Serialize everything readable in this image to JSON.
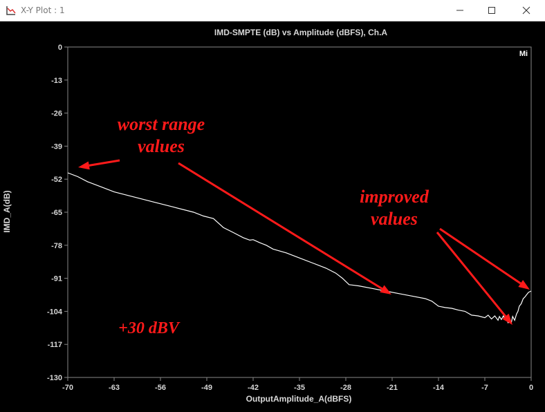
{
  "window": {
    "title": "X-Y Plot : 1"
  },
  "chart_data": {
    "type": "line",
    "title": "IMD-SMPTE (dB) vs Amplitude (dBFS), Ch.A",
    "xlabel": "OutputAmplitude_A(dBFS)",
    "ylabel": "IMD_A(dB)",
    "xlim": [
      -70,
      0
    ],
    "ylim": [
      -130,
      0
    ],
    "xticks": [
      -70,
      -63,
      -56,
      -49,
      -42,
      -35,
      -28,
      -21,
      -14,
      -7,
      0
    ],
    "yticks": [
      0,
      -13,
      -26,
      -39,
      -52,
      -65,
      -78,
      -91,
      -104,
      -117,
      -130
    ],
    "grid": false,
    "corner_label": "Mi",
    "series": [
      {
        "color": "#ffffff",
        "x": [
          -70,
          -68.5,
          -67,
          -65,
          -63,
          -60,
          -57,
          -54,
          -51,
          -49.5,
          -48,
          -46.5,
          -45,
          -43.5,
          -42.5,
          -42,
          -41,
          -40,
          -39,
          -37,
          -35,
          -33,
          -31,
          -29.5,
          -28.5,
          -27.5,
          -26,
          -24,
          -22,
          -20,
          -18,
          -16,
          -15,
          -14,
          -13,
          -12,
          -11,
          -10,
          -9,
          -8,
          -7,
          -6.5,
          -6,
          -5.5,
          -5,
          -4.8,
          -4.5,
          -4.2,
          -4,
          -3.7,
          -3.5,
          -3.2,
          -3,
          -2.8,
          -2.5,
          -2.2,
          -2,
          -1.8,
          -1.5,
          -1.2,
          -1,
          -0.7,
          -0.4,
          0
        ],
        "y": [
          -49.5,
          -51,
          -53,
          -55,
          -57,
          -59,
          -61,
          -63,
          -65,
          -66.5,
          -67.5,
          -71,
          -73,
          -75,
          -76,
          -75.8,
          -77,
          -78,
          -79.5,
          -81,
          -83,
          -85,
          -87,
          -89,
          -91,
          -93.5,
          -94,
          -95,
          -96,
          -97,
          -98,
          -99,
          -100,
          -102,
          -102.5,
          -102.8,
          -103.5,
          -104,
          -105.5,
          -105.8,
          -106.5,
          -105.5,
          -107,
          -105.8,
          -107.5,
          -106,
          -107.2,
          -105.8,
          -107,
          -106.5,
          -108.5,
          -108,
          -108.5,
          -106,
          -107.5,
          -105,
          -104,
          -102,
          -101,
          -99,
          -98.5,
          -97.5,
          -96.5,
          -96
        ]
      }
    ]
  },
  "annotations": {
    "worst_label": "worst range\nvalues",
    "improved_label": "improved\nvalues",
    "level_label": "+30 dBV",
    "color": "#ff1a1a"
  }
}
